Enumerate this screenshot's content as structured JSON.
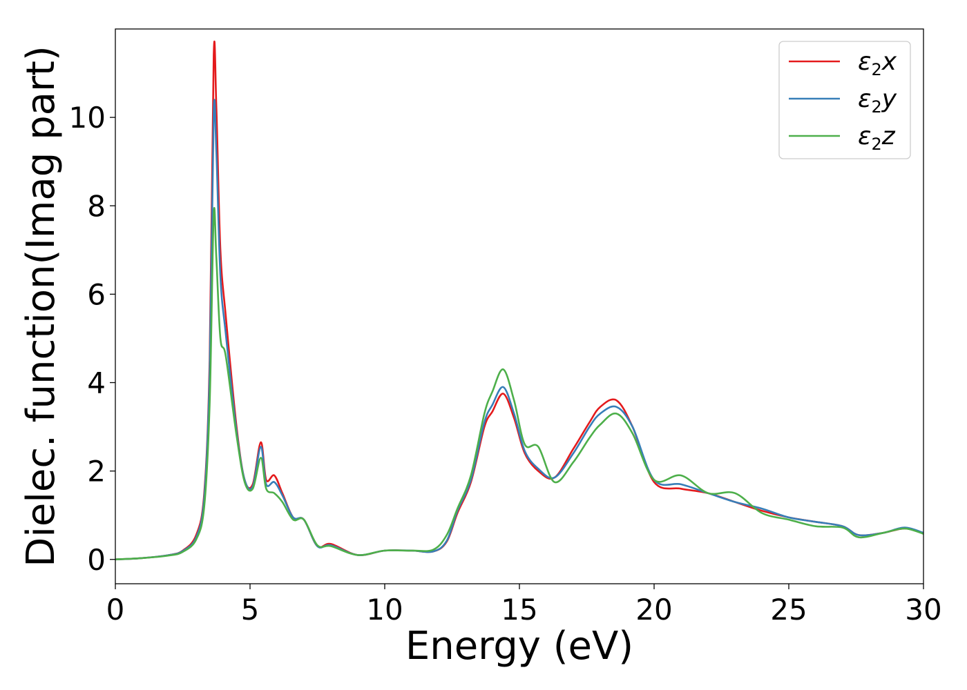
{
  "chart_data": {
    "type": "line",
    "title": "",
    "xlabel": "Energy (eV)",
    "ylabel": "Dielec. function(Imag part)",
    "xlim": [
      0,
      30
    ],
    "ylim": [
      -0.55,
      12.0
    ],
    "xticks": [
      "0",
      "5",
      "10",
      "15",
      "20",
      "25",
      "30"
    ],
    "yticks": [
      "0",
      "2",
      "4",
      "6",
      "8",
      "10"
    ],
    "grid": false,
    "legend_position": "top-right",
    "x": [
      0,
      1,
      2,
      2.5,
      3.0,
      3.3,
      3.5,
      3.65,
      3.75,
      3.9,
      4.1,
      4.5,
      4.8,
      5.1,
      5.4,
      5.6,
      5.9,
      6.2,
      6.6,
      7.0,
      7.5,
      8.0,
      9.0,
      10.0,
      11.0,
      11.8,
      12.3,
      12.7,
      13.2,
      13.7,
      14.0,
      14.4,
      14.8,
      15.2,
      15.7,
      16.3,
      17.0,
      17.6,
      18.0,
      18.6,
      19.2,
      20.0,
      21.0,
      22.0,
      23.0,
      24.0,
      25.0,
      26.0,
      27.0,
      27.6,
      28.5,
      29.3,
      30.0
    ],
    "series": [
      {
        "name": "x",
        "color": "#e41a1c",
        "values": [
          0,
          0.03,
          0.1,
          0.2,
          0.55,
          1.5,
          4.5,
          11.4,
          10.2,
          7.0,
          5.5,
          3.0,
          1.8,
          1.7,
          2.65,
          1.8,
          1.9,
          1.5,
          0.95,
          0.9,
          0.3,
          0.35,
          0.1,
          0.2,
          0.2,
          0.18,
          0.4,
          1.05,
          1.75,
          3.0,
          3.35,
          3.75,
          3.2,
          2.4,
          2.0,
          1.85,
          2.5,
          3.1,
          3.45,
          3.6,
          3.0,
          1.75,
          1.6,
          1.5,
          1.3,
          1.1,
          0.95,
          0.85,
          0.75,
          0.55,
          0.6,
          0.7,
          0.6
        ]
      },
      {
        "name": "y",
        "color": "#377eb8",
        "values": [
          0,
          0.03,
          0.1,
          0.19,
          0.5,
          1.4,
          4.2,
          10.1,
          9.2,
          6.4,
          5.1,
          2.9,
          1.8,
          1.65,
          2.55,
          1.7,
          1.75,
          1.45,
          0.95,
          0.9,
          0.3,
          0.32,
          0.1,
          0.2,
          0.2,
          0.18,
          0.42,
          1.1,
          1.8,
          3.1,
          3.5,
          3.9,
          3.3,
          2.45,
          2.05,
          1.85,
          2.4,
          3.0,
          3.3,
          3.45,
          3.0,
          1.8,
          1.7,
          1.5,
          1.3,
          1.15,
          0.95,
          0.85,
          0.75,
          0.55,
          0.6,
          0.72,
          0.6
        ]
      },
      {
        "name": "z",
        "color": "#4daf4a",
        "values": [
          0,
          0.03,
          0.09,
          0.17,
          0.45,
          1.2,
          3.5,
          7.8,
          6.8,
          5.0,
          4.6,
          2.8,
          1.75,
          1.6,
          2.3,
          1.6,
          1.5,
          1.3,
          0.9,
          0.9,
          0.32,
          0.3,
          0.1,
          0.2,
          0.2,
          0.22,
          0.55,
          1.15,
          1.9,
          3.3,
          3.8,
          4.3,
          3.6,
          2.6,
          2.55,
          1.75,
          2.2,
          2.75,
          3.05,
          3.3,
          2.85,
          1.8,
          1.9,
          1.5,
          1.5,
          1.05,
          0.9,
          0.75,
          0.72,
          0.5,
          0.6,
          0.7,
          0.58
        ]
      }
    ]
  },
  "legend": {
    "entries": [
      {
        "symbol": "ε",
        "sub": "2",
        "var": "x"
      },
      {
        "symbol": "ε",
        "sub": "2",
        "var": "y"
      },
      {
        "symbol": "ε",
        "sub": "2",
        "var": "z"
      }
    ]
  }
}
